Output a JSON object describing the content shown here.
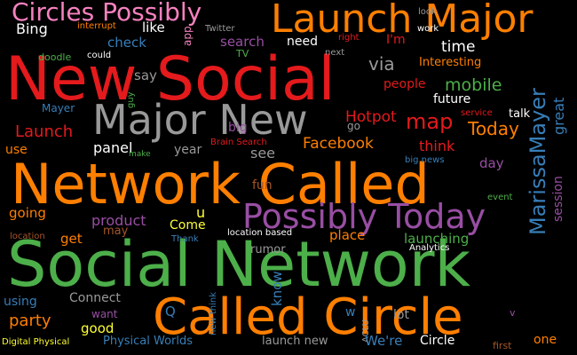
{
  "colors": {
    "background": "#000000",
    "red": "#e41a1c",
    "orange": "#ff7f00",
    "green": "#4daf4a",
    "purple": "#984ea3",
    "blue": "#377eb8",
    "pink": "#f781bf",
    "gray": "#999999",
    "brown": "#a65628",
    "yellow": "#ffff33"
  },
  "words": [
    "New Social",
    "Social Network",
    "Network Called",
    "Called Circle",
    "Major New",
    "Launch Major",
    "Possibly Today",
    "Circles Possibly",
    "MarissaMayer",
    "map",
    "Hotpot",
    "via",
    "mobile",
    "Today",
    "Launch",
    "Facebook",
    "Bing",
    "like",
    "check",
    "search",
    "need",
    "I'm",
    "time",
    "Interesting",
    "people",
    "future",
    "talk",
    "great",
    "say",
    "panel",
    "year",
    "see",
    "think",
    "day",
    "session",
    "Mayer",
    "big",
    "go",
    "use",
    "fun",
    "product",
    "Come",
    "u",
    "place",
    "launching",
    "going",
    "get",
    "know",
    "rumor",
    "party",
    "using",
    "Connect",
    "good",
    "want",
    "Q",
    "lot",
    "w",
    "v",
    "We're",
    "Circle",
    "one",
    "first",
    "launch new",
    "Physical Worlds",
    "Digital Physical",
    "Twitter",
    "interrupt",
    "app",
    "could",
    "doodle",
    "TV",
    "next",
    "right",
    "look",
    "work",
    "guy",
    "service",
    "Brain Search",
    "make",
    "big news",
    "event",
    "location",
    "Thank",
    "may",
    "location based",
    "new think",
    "ACLU",
    "Analytics"
  ]
}
